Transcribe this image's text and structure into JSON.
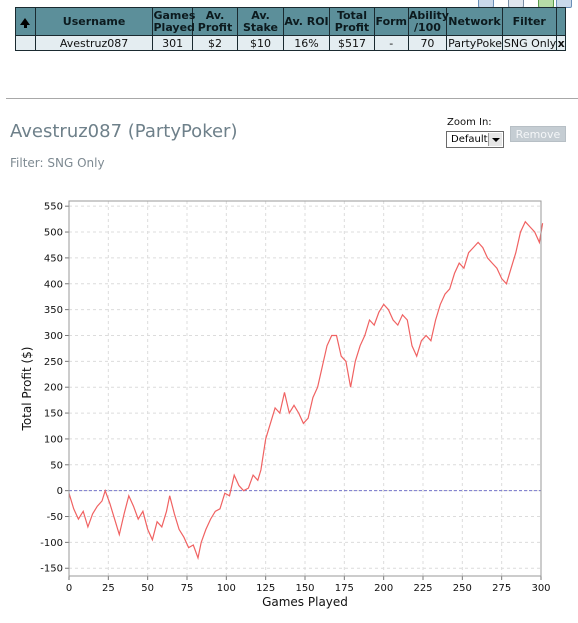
{
  "table": {
    "headers": {
      "username": "Username",
      "games_played": [
        "Games",
        "Played"
      ],
      "av_profit": [
        "Av.",
        "Profit"
      ],
      "av_stake": [
        "Av.",
        "Stake"
      ],
      "av_roi": "Av. ROI",
      "total_profit": [
        "Total",
        "Profit"
      ],
      "form": "Form",
      "ability": [
        "Ability",
        "/100"
      ],
      "network": "Network",
      "filter": "Filter"
    },
    "row": {
      "username": "Avestruz087",
      "games_played": "301",
      "av_profit": "$2",
      "av_stake": "$10",
      "av_roi": "16%",
      "total_profit": "$517",
      "form": "-",
      "ability": "70",
      "network": "PartyPoker",
      "filter": "SNG Only",
      "delete": "x"
    }
  },
  "player": {
    "title": "Avestruz087 (PartyPoker)",
    "filter_text": "Filter: SNG Only"
  },
  "zoom": {
    "label": "Zoom In:",
    "value": "Default"
  },
  "remove_label": "Remove",
  "icons": [
    "chart-icon",
    "print-icon",
    "refresh-icon",
    "export-icon"
  ],
  "colors": {
    "header_bg": "#5c8f9a",
    "row_bg": "#e4edf1",
    "series": "#f06262",
    "zero_line": "#7777cc"
  },
  "chart_data": {
    "type": "line",
    "xlabel": "Games Played",
    "ylabel": "Total Profit ($)",
    "xlim": [
      0,
      300
    ],
    "ylim": [
      -165,
      560
    ],
    "xticks": [
      0,
      25,
      50,
      75,
      100,
      125,
      150,
      175,
      200,
      225,
      250,
      275,
      300
    ],
    "yticks": [
      550,
      500,
      450,
      400,
      350,
      300,
      250,
      200,
      150,
      100,
      50,
      0,
      -50,
      -100,
      -150
    ],
    "grid": true,
    "reference_line_y": 0,
    "series": [
      {
        "x": [
          0,
          3,
          6,
          9,
          12,
          15,
          18,
          21,
          23,
          26,
          29,
          32,
          35,
          38,
          41,
          44,
          47,
          50,
          53,
          56,
          59,
          62,
          64,
          67,
          70,
          73,
          76,
          79,
          82,
          84,
          87,
          90,
          93,
          96,
          99,
          102,
          105,
          108,
          111,
          114,
          117,
          120,
          122,
          125,
          128,
          131,
          134,
          137,
          140,
          143,
          146,
          149,
          152,
          155,
          158,
          161,
          164,
          167,
          170,
          173,
          176,
          179,
          182,
          185,
          188,
          191,
          194,
          197,
          200,
          203,
          206,
          209,
          212,
          215,
          218,
          221,
          224,
          227,
          230,
          233,
          236,
          239,
          242,
          245,
          248,
          251,
          254,
          257,
          260,
          263,
          266,
          269,
          272,
          275,
          278,
          281,
          284,
          287,
          290,
          293,
          296,
          299,
          301
        ],
        "y": [
          -5,
          -35,
          -55,
          -40,
          -70,
          -45,
          -30,
          -20,
          0,
          -25,
          -55,
          -85,
          -45,
          -10,
          -30,
          -55,
          -40,
          -75,
          -95,
          -60,
          -70,
          -40,
          -10,
          -45,
          -75,
          -90,
          -110,
          -105,
          -130,
          -100,
          -75,
          -55,
          -40,
          -35,
          -5,
          -10,
          30,
          10,
          0,
          5,
          30,
          20,
          40,
          100,
          130,
          160,
          150,
          190,
          150,
          165,
          150,
          130,
          140,
          180,
          200,
          240,
          280,
          300,
          300,
          260,
          250,
          200,
          250,
          280,
          300,
          330,
          320,
          345,
          360,
          350,
          330,
          320,
          340,
          330,
          280,
          260,
          290,
          300,
          290,
          330,
          360,
          380,
          390,
          420,
          440,
          430,
          460,
          470,
          480,
          470,
          450,
          440,
          430,
          410,
          400,
          430,
          460,
          500,
          520,
          510,
          500,
          480,
          517
        ]
      }
    ]
  }
}
